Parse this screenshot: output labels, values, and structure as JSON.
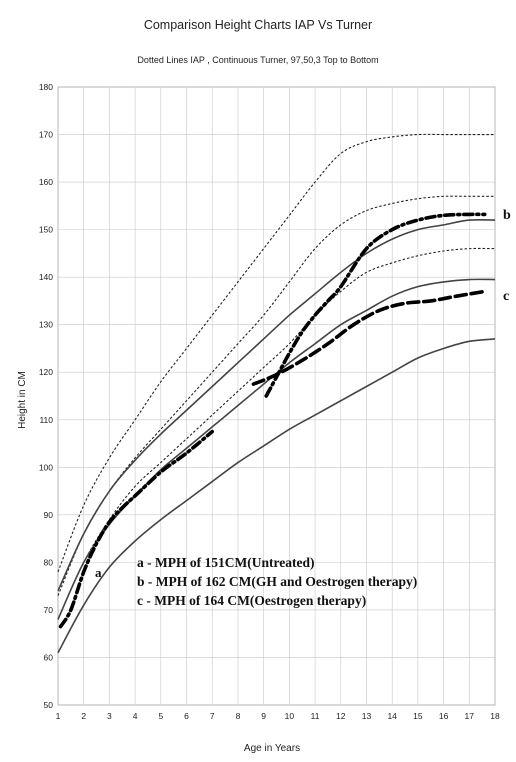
{
  "chart_data": {
    "type": "line",
    "title": "Comparison Height Charts IAP Vs Turner",
    "subtitle": "Dotted Lines IAP , Continuous Turner, 97,50,3 Top to Bottom",
    "xlabel": "Age in Years",
    "ylabel": "Height in CM",
    "xlim": [
      1,
      18
    ],
    "ylim": [
      50,
      180
    ],
    "xticks": [
      1,
      2,
      3,
      4,
      5,
      6,
      7,
      8,
      9,
      10,
      11,
      12,
      13,
      14,
      15,
      16,
      17,
      18
    ],
    "yticks": [
      50,
      60,
      70,
      80,
      90,
      100,
      110,
      120,
      130,
      140,
      150,
      160,
      170,
      180
    ],
    "grid": true,
    "series": [
      {
        "style": "iap-dotted",
        "x": [
          1,
          2,
          3,
          4,
          5,
          6,
          7,
          8,
          9,
          10,
          11,
          12,
          13,
          14,
          15,
          16,
          17,
          18
        ],
        "y": [
          78,
          92,
          102,
          110,
          118,
          125,
          132,
          139,
          146,
          153,
          160,
          166,
          168.5,
          169.5,
          170,
          170,
          170,
          170
        ]
      },
      {
        "style": "iap-dotted",
        "x": [
          1,
          2,
          3,
          4,
          5,
          6,
          7,
          8,
          9,
          10,
          11,
          12,
          13,
          14,
          15,
          16,
          17,
          18
        ],
        "y": [
          73,
          86,
          95,
          102,
          108,
          114,
          120,
          126,
          132,
          139,
          146,
          151,
          154,
          155.5,
          156.5,
          157,
          157,
          157
        ]
      },
      {
        "style": "iap-dotted",
        "x": [
          1,
          2,
          3,
          4,
          5,
          6,
          7,
          8,
          9,
          10,
          11,
          12,
          13,
          14,
          15,
          16,
          17,
          18
        ],
        "y": [
          68,
          80,
          89,
          96,
          101,
          106,
          111,
          116,
          121,
          126,
          132,
          137,
          141,
          143,
          144.5,
          145.5,
          146,
          146
        ]
      },
      {
        "style": "turner-solid",
        "x": [
          1,
          2,
          3,
          4,
          5,
          6,
          7,
          8,
          9,
          10,
          11,
          12,
          13,
          14,
          15,
          16,
          17,
          18
        ],
        "y": [
          74,
          86,
          95,
          101.5,
          107,
          112,
          117,
          122,
          127,
          132,
          136.5,
          141,
          145,
          148,
          150,
          151,
          152,
          152
        ]
      },
      {
        "style": "turner-solid",
        "x": [
          1,
          2,
          3,
          4,
          5,
          6,
          7,
          8,
          9,
          10,
          11,
          12,
          13,
          14,
          15,
          16,
          17,
          18
        ],
        "y": [
          68,
          80,
          88,
          94,
          99.5,
          104,
          108.5,
          113,
          117.5,
          122,
          126,
          130,
          133,
          136,
          138,
          139,
          139.5,
          139.5
        ]
      },
      {
        "style": "turner-solid",
        "x": [
          1,
          2,
          3,
          4,
          5,
          6,
          7,
          8,
          9,
          10,
          11,
          12,
          13,
          14,
          15,
          16,
          17,
          18
        ],
        "y": [
          61,
          71,
          79,
          84.5,
          89,
          93,
          97,
          101,
          104.5,
          108,
          111,
          114,
          117,
          120,
          123,
          125,
          126.5,
          127
        ]
      },
      {
        "name": "a",
        "style": "patient-dashdot",
        "x": [
          1.1,
          1.5,
          2,
          2.5,
          3,
          3.5,
          4,
          5,
          6,
          7
        ],
        "y": [
          66.5,
          70,
          78,
          84,
          88.5,
          91.5,
          94,
          99,
          103,
          107.5
        ]
      },
      {
        "name": "b",
        "style": "patient-dashdot",
        "x": [
          9.1,
          9.5,
          10,
          10.5,
          11,
          11.5,
          12,
          13,
          14,
          15,
          16,
          17,
          17.6
        ],
        "y": [
          115,
          119,
          124,
          128.5,
          132,
          135,
          138,
          146,
          150,
          152,
          153,
          153.2,
          153.2
        ]
      },
      {
        "name": "c",
        "style": "patient-dashed",
        "x": [
          8.6,
          9.5,
          10.5,
          11.5,
          12.5,
          13.5,
          14.5,
          15.5,
          16.5,
          17.6
        ],
        "y": [
          117.5,
          119.5,
          122.5,
          126,
          130,
          133,
          134.5,
          135,
          136,
          137
        ]
      }
    ],
    "annotations": {
      "a": "a - MPH of 151CM(Untreated)",
      "b": "b - MPH of 162 CM(GH and Oestrogen therapy)",
      "c": "c - MPH of 164 CM(Oestrogen therapy)"
    },
    "curve_labels": [
      "a",
      "b",
      "c"
    ]
  }
}
